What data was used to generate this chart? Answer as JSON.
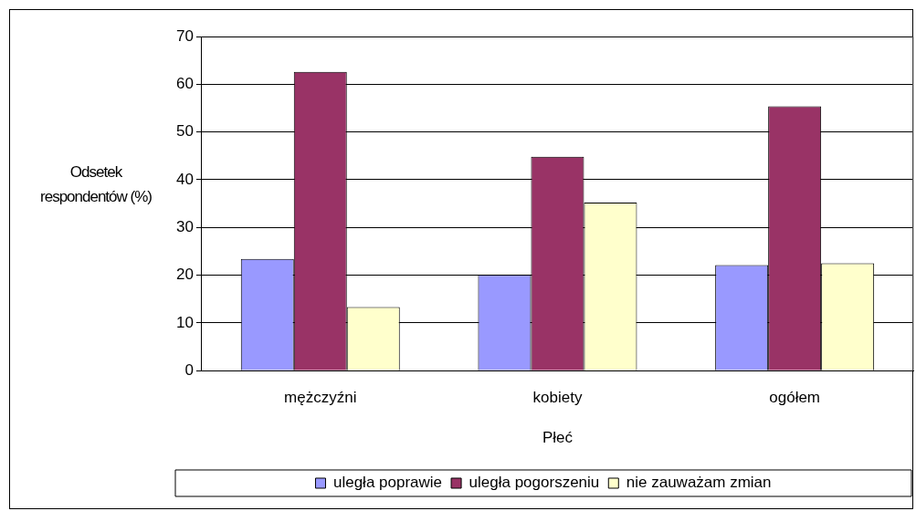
{
  "chart_data": {
    "type": "bar",
    "xlabel": "Płeć",
    "ylabel": "Odsetek respondentów (%)",
    "categories": [
      "mężczyźni",
      "kobiety",
      "ogółem"
    ],
    "series": [
      {
        "name": "uległa poprawie",
        "color": "#9999ff",
        "values": [
          23.4,
          20.1,
          22.1
        ]
      },
      {
        "name": "uległa pogorszeniu",
        "color": "#993366",
        "values": [
          62.6,
          44.8,
          55.4
        ]
      },
      {
        "name": "nie zauważam zmian",
        "color": "#ffffcc",
        "values": [
          13.3,
          35.2,
          22.5
        ]
      }
    ],
    "ylim": [
      0,
      70
    ],
    "yticks": [
      0,
      10,
      20,
      30,
      40,
      50,
      60,
      70
    ],
    "grid": "y",
    "legend": "bottom"
  }
}
